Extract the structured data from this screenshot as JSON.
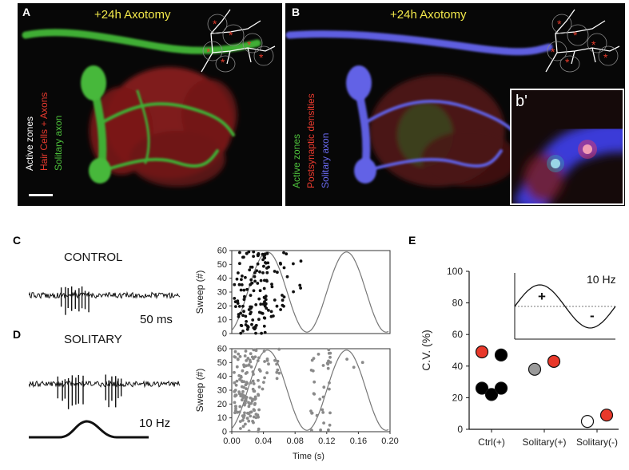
{
  "panel_a": {
    "letter": "A",
    "title": "+24h Axotomy",
    "labels": {
      "active_zones": "Active zones",
      "hair_cells_axons": "Hair Cells + Axons",
      "solitary_axon": "Solitary axon"
    },
    "colors": {
      "active_zones": "#ffffff",
      "hair_cells_axons": "#e83a2e",
      "solitary_axon": "#4ec23c"
    },
    "marker_glyph": "*"
  },
  "panel_b": {
    "letter": "B",
    "title": "+24h Axotomy",
    "inset_letter": "b'",
    "labels": {
      "active_zones": "Active zones",
      "postsynaptic": "Postsynaptic densities",
      "solitary_axon": "Solitary axon"
    },
    "colors": {
      "active_zones": "#4ec23c",
      "postsynaptic": "#e83a2e",
      "solitary_axon": "#6a6af0"
    },
    "marker_glyph": "*"
  },
  "panel_c": {
    "letter": "C",
    "label": "CONTROL"
  },
  "panel_d": {
    "letter": "D",
    "label": "SOLITARY"
  },
  "scale_time": "50 ms",
  "stim_freq": "10 Hz",
  "panel_e": {
    "letter": "E",
    "inset_freq": "10 Hz",
    "plus": "+",
    "minus": "-"
  },
  "chart_data": [
    {
      "type": "scatter",
      "name": "raster-control",
      "ylabel": "Sweep (#)",
      "xlim": [
        0,
        0.2
      ],
      "ylim": [
        0,
        60
      ],
      "yticks": [
        "0",
        "10",
        "20",
        "30",
        "40",
        "50",
        "60"
      ],
      "sinusoid": {
        "frequency_hz": 10,
        "peak_time_s": 0.045
      },
      "point_color": "#111111"
    },
    {
      "type": "scatter",
      "name": "raster-solitary",
      "xlabel": "Time (s)",
      "ylabel": "Sweep (#)",
      "xlim": [
        0,
        0.2
      ],
      "ylim": [
        0,
        60
      ],
      "xticks": [
        "0.00",
        "0.04",
        "0.08",
        "0.12",
        "0.16",
        "0.20"
      ],
      "yticks": [
        "0",
        "10",
        "20",
        "30",
        "40",
        "50",
        "60"
      ],
      "sinusoid": {
        "frequency_hz": 10,
        "peak_time_s": 0.045
      },
      "point_color": "#8a8a8a"
    },
    {
      "type": "scatter",
      "name": "cv-by-group",
      "ylabel": "C.V. (%)",
      "ylim": [
        0,
        100
      ],
      "yticks": [
        "0",
        "20",
        "40",
        "60",
        "80",
        "100"
      ],
      "categories": [
        "Ctrl(+)",
        "Solitary(+)",
        "Solitary(-)"
      ],
      "points": [
        {
          "category": "Ctrl(+)",
          "offset": -0.3,
          "value": 49,
          "color": "#e8382a"
        },
        {
          "category": "Ctrl(+)",
          "offset": 0.3,
          "value": 47,
          "color": "#000000"
        },
        {
          "category": "Ctrl(+)",
          "offset": -0.3,
          "value": 26,
          "color": "#000000"
        },
        {
          "category": "Ctrl(+)",
          "offset": 0,
          "value": 22,
          "color": "#000000"
        },
        {
          "category": "Ctrl(+)",
          "offset": 0.3,
          "value": 26,
          "color": "#000000"
        },
        {
          "category": "Solitary(+)",
          "offset": -0.3,
          "value": 38,
          "color": "#9a9a9a"
        },
        {
          "category": "Solitary(+)",
          "offset": 0.3,
          "value": 43,
          "color": "#e8382a"
        },
        {
          "category": "Solitary(-)",
          "offset": -0.3,
          "value": 5,
          "color": "#ffffff"
        },
        {
          "category": "Solitary(-)",
          "offset": 0.3,
          "value": 9,
          "color": "#e8382a"
        }
      ]
    }
  ]
}
